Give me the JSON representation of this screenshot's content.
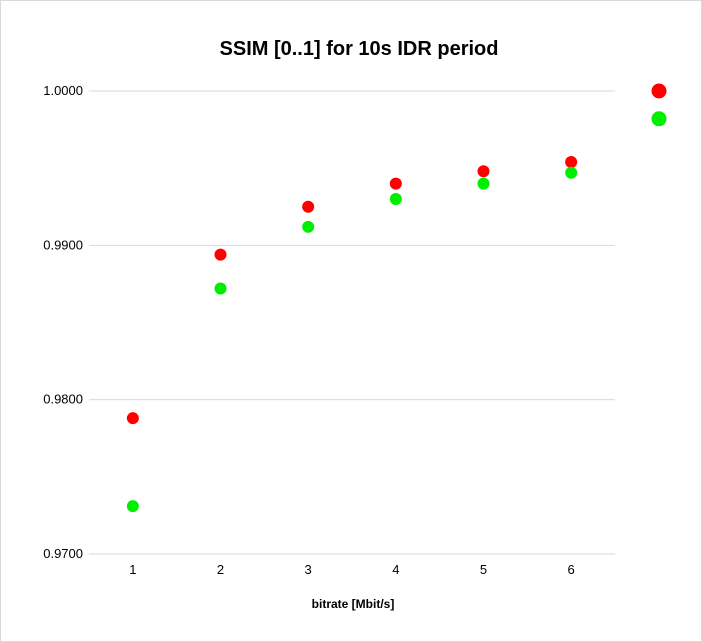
{
  "chart_data": {
    "type": "scatter",
    "title": "SSIM [0..1] for 10s IDR period",
    "xlabel": "bitrate [Mbit/s]",
    "ylabel": "",
    "x_ticks": [
      "1",
      "2",
      "3",
      "4",
      "5",
      "6"
    ],
    "y_ticks": [
      "0.9700",
      "0.9800",
      "0.9900",
      "1.0000"
    ],
    "xlim": [
      0.5,
      6.5
    ],
    "ylim": [
      0.97,
      1.0
    ],
    "grid": "horizontal",
    "legend": "none",
    "series": [
      {
        "color": "#ff0000",
        "points": [
          {
            "x": 1,
            "y": 0.9788
          },
          {
            "x": 2,
            "y": 0.9894
          },
          {
            "x": 3,
            "y": 0.9925
          },
          {
            "x": 4,
            "y": 0.994
          },
          {
            "x": 5,
            "y": 0.9948
          },
          {
            "x": 6,
            "y": 0.9954
          }
        ],
        "outlier": {
          "y": 1.0
        }
      },
      {
        "color": "#00ee00",
        "points": [
          {
            "x": 1,
            "y": 0.9731
          },
          {
            "x": 2,
            "y": 0.9872
          },
          {
            "x": 3,
            "y": 0.9912
          },
          {
            "x": 4,
            "y": 0.993
          },
          {
            "x": 5,
            "y": 0.994
          },
          {
            "x": 6,
            "y": 0.9947
          }
        ],
        "outlier": {
          "y": 0.9982
        }
      }
    ]
  }
}
